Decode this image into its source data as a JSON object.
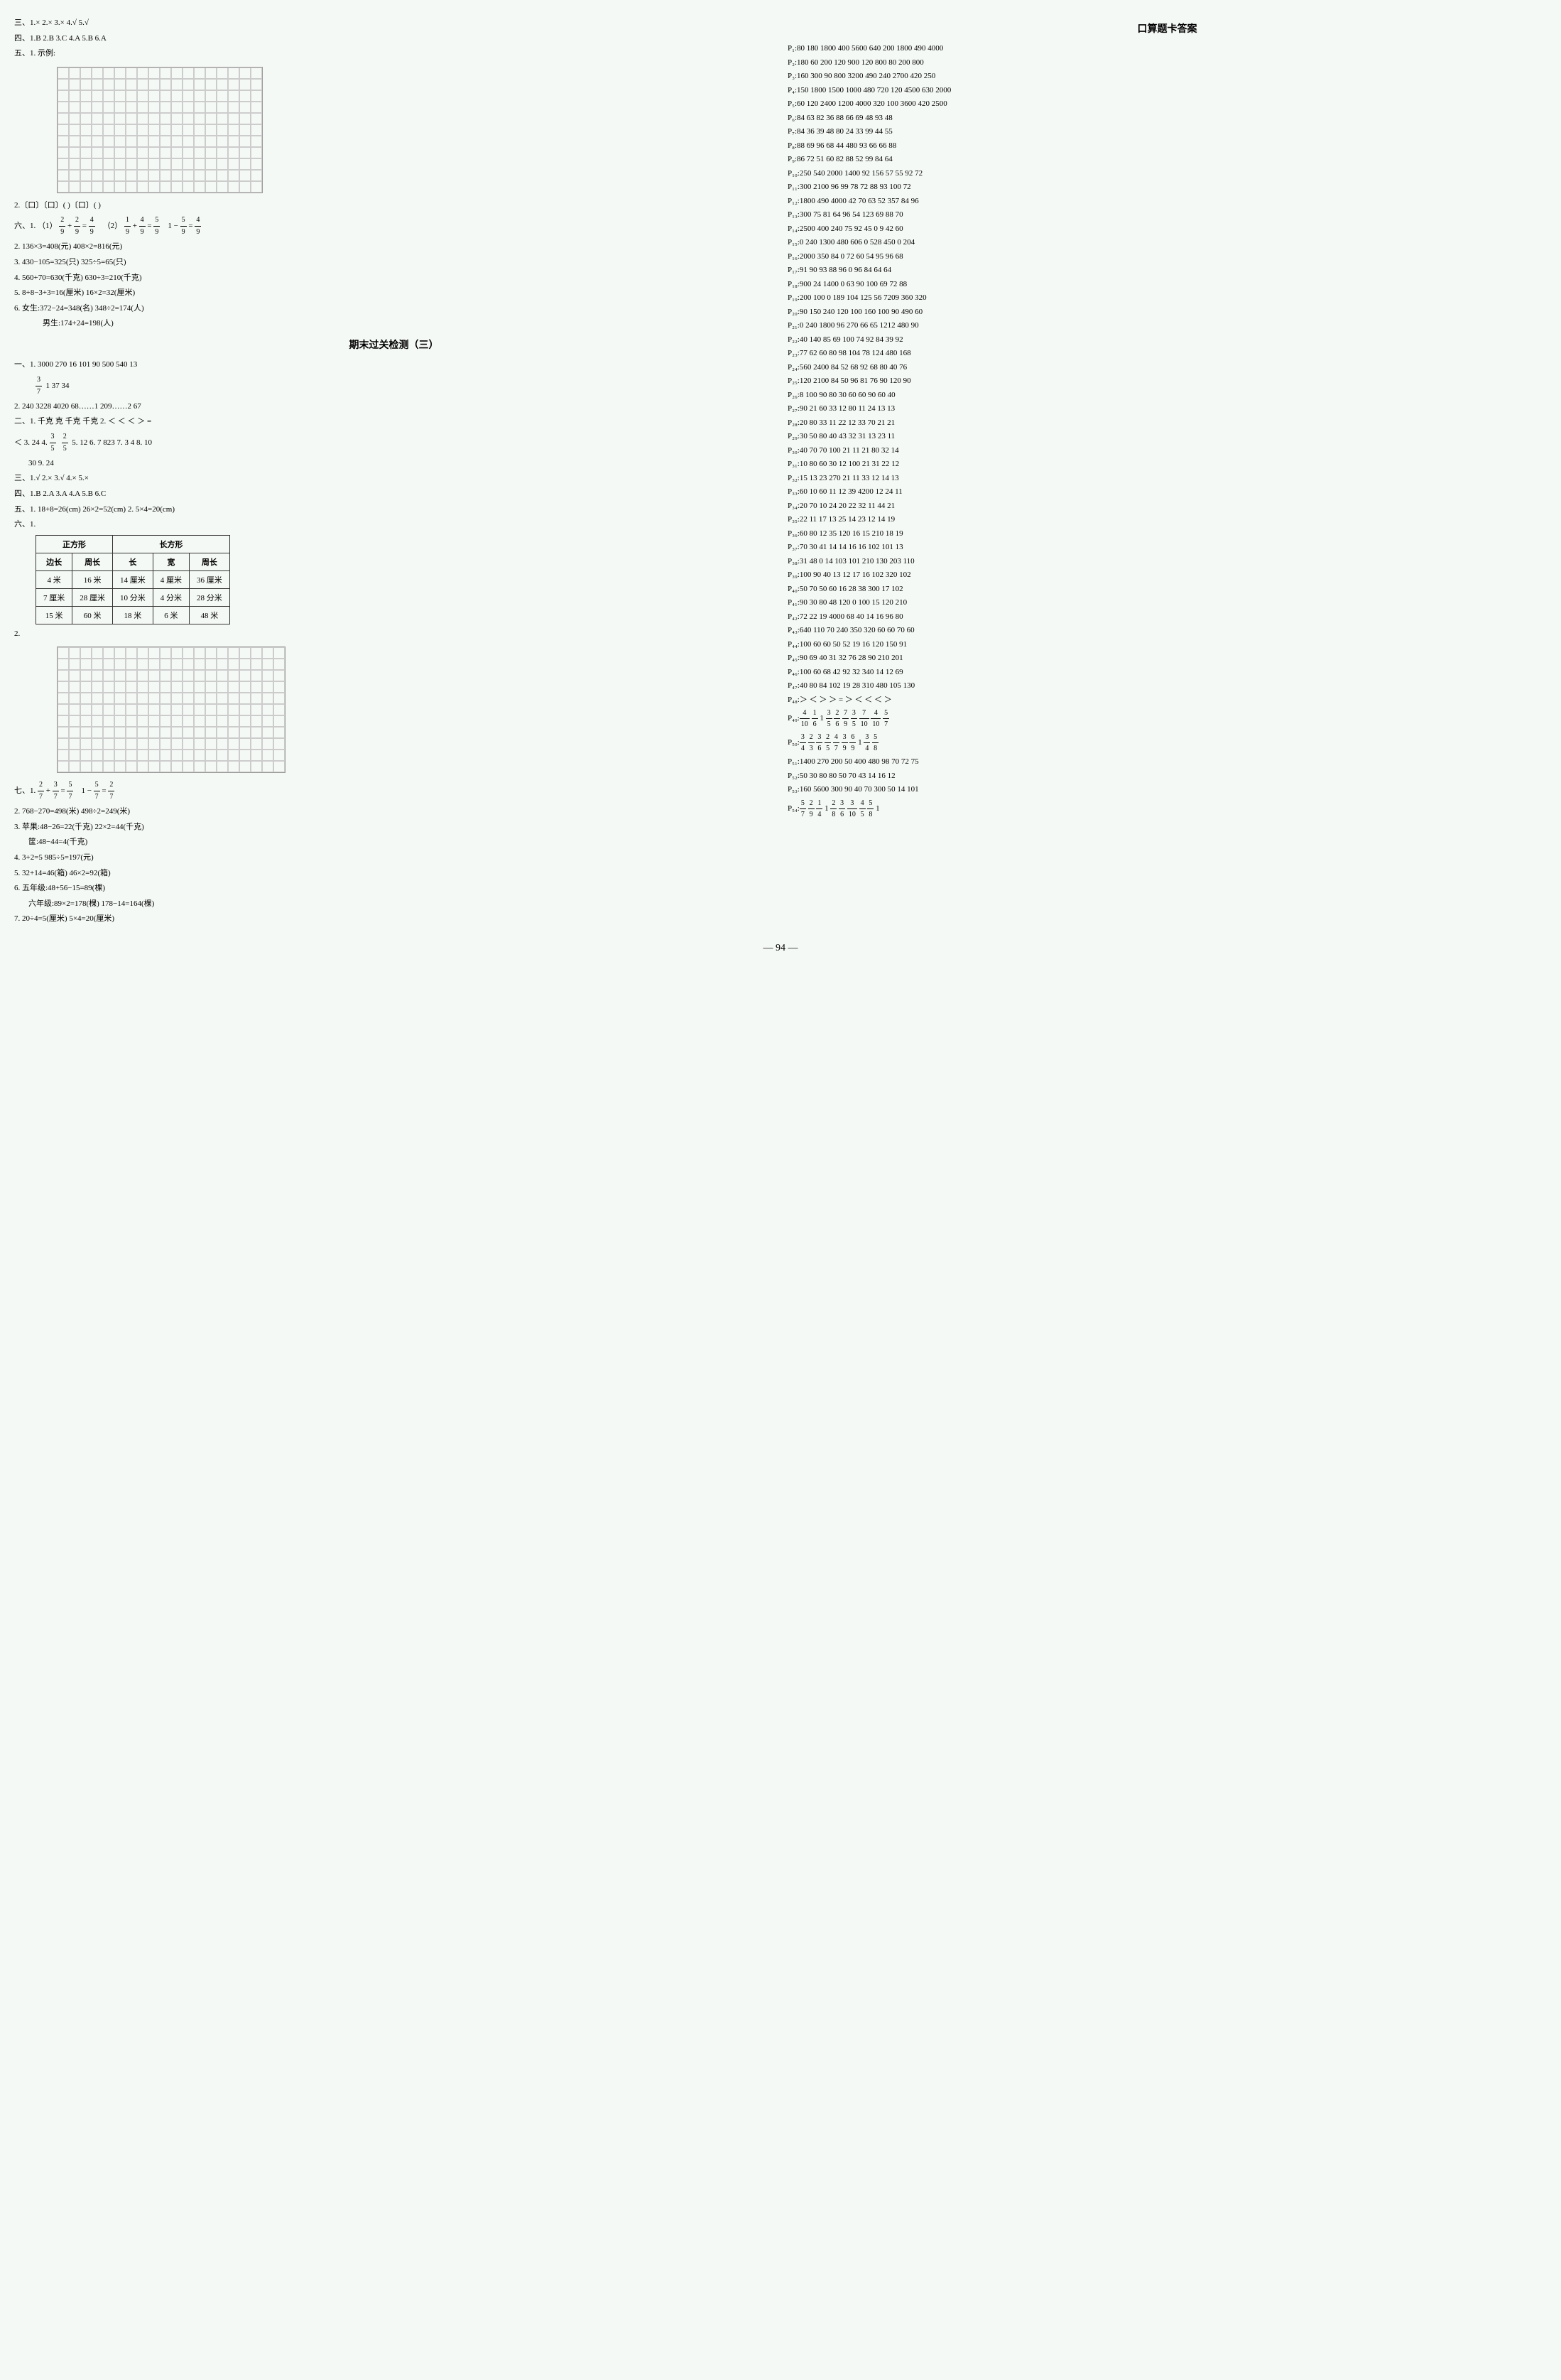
{
  "left": {
    "san": "三、1.× 2.× 3.× 4.√ 5.√",
    "si": "四、1.B 2.B 3.C 4.A 5.B 6.A",
    "wu1_label": "五、1. 示例:",
    "wu2": "2.〔口〕〔口〕( )〔口〕( )",
    "liu_header": "六、1.",
    "liu1_1": "（1）",
    "liu1_frac1": {
      "n": "2",
      "d": "9"
    },
    "liu1_plus": " + ",
    "liu1_frac2": {
      "n": "2",
      "d": "9"
    },
    "liu1_eq": " = ",
    "liu1_frac3": {
      "n": "4",
      "d": "9"
    },
    "liu1_2": "（2）",
    "liu1_fracA": {
      "n": "1",
      "d": "9"
    },
    "liu1_plusA": " + ",
    "liu1_fracB": {
      "n": "4",
      "d": "9"
    },
    "liu1_eqA": " = ",
    "liu1_fracC": {
      "n": "5",
      "d": "9"
    },
    "liu1_3": "1 − ",
    "liu1_fracD": {
      "n": "5",
      "d": "9"
    },
    "liu1_eqB": " = ",
    "liu1_fracE": {
      "n": "4",
      "d": "9"
    },
    "liu2": "2. 136×3=408(元) 408×2=816(元)",
    "liu3": "3. 430−105=325(只) 325÷5=65(只)",
    "liu4": "4. 560+70=630(千克) 630÷3=210(千克)",
    "liu5": "5. 8+8−3+3=16(厘米) 16×2=32(厘米)",
    "liu6a": "6. 女生:372−24=348(名) 348÷2=174(人)",
    "liu6b": "男生:174+24=198(人)",
    "test3_title": "期末过关检测（三）",
    "t3_yi1": "一、1. 3000 270 16 101 90 500 540 13",
    "t3_yi1_frac": {
      "n": "3",
      "d": "7"
    },
    "t3_yi1_rest": "1 37 34",
    "t3_yi2": "2. 240 3228 4020 68……1 209……2 67",
    "t3_er1": "二、1. 千克 克 千克 千克 2. ＜ ＜ ＜ ＞ =",
    "t3_er2": "＜ 3. 24 4.",
    "t3_er2_frac1": {
      "n": "3",
      "d": "5"
    },
    "t3_er2_frac2": {
      "n": "2",
      "d": "5"
    },
    "t3_er2_rest": "5. 12 6. 7 823 7. 3 4 8. 10",
    "t3_er3": "30 9. 24",
    "t3_san": "三、1.√ 2.× 3.√ 4.× 5.×",
    "t3_si": "四、1.B 2.A 3.A 4.A 5.B 6.C",
    "t3_wu": "五、1. 18+8=26(cm) 26×2=52(cm) 2. 5×4=20(cm)",
    "t3_liu_label": "六、1.",
    "table": {
      "headers": [
        "正方形",
        "",
        "长方形",
        "",
        ""
      ],
      "subheaders": [
        "边长",
        "周长",
        "长",
        "宽",
        "周长"
      ],
      "rows": [
        [
          "4 米",
          "16 米",
          "14 厘米",
          "4 厘米",
          "36 厘米"
        ],
        [
          "7 厘米",
          "28 厘米",
          "10 分米",
          "4 分米",
          "28 分米"
        ],
        [
          "15 米",
          "60 米",
          "18 米",
          "6 米",
          "48 米"
        ]
      ]
    },
    "t3_liu2_label": "2.",
    "t3_qi_label": "七、1.",
    "t3_qi1_frac1": {
      "n": "2",
      "d": "7"
    },
    "t3_qi1_plus": " + ",
    "t3_qi1_frac2": {
      "n": "3",
      "d": "7"
    },
    "t3_qi1_eq": " = ",
    "t3_qi1_frac3": {
      "n": "5",
      "d": "7"
    },
    "t3_qi1_sp": "1 − ",
    "t3_qi1_frac4": {
      "n": "5",
      "d": "7"
    },
    "t3_qi1_eq2": " = ",
    "t3_qi1_frac5": {
      "n": "2",
      "d": "7"
    },
    "t3_qi2": "2. 768−270=498(米) 498÷2=249(米)",
    "t3_qi3a": "3. 苹果:48−26=22(千克) 22×2=44(千克)",
    "t3_qi3b": "筐:48−44=4(千克)",
    "t3_qi4": "4. 3+2=5 985÷5=197(元)",
    "t3_qi5": "5. 32+14=46(箱) 46×2=92(箱)",
    "t3_qi6a": "6. 五年级:48+56−15=89(棵)",
    "t3_qi6b": "六年级:89×2=178(棵) 178−14=164(棵)",
    "t3_qi7": "7. 20÷4=5(厘米) 5×4=20(厘米)"
  },
  "right": {
    "title": "口算题卡答案",
    "rows": [
      {
        "label": "P₁:",
        "values": "80 180 1800 400 5600 640 200 1800 490 4000"
      },
      {
        "label": "P₂:",
        "values": "180 60 200 120 900 120 800 80 200 800"
      },
      {
        "label": "P₃:",
        "values": "160 300 90 800 3200 490 240 2700 420 250"
      },
      {
        "label": "P₄:",
        "values": "150 1800 1500 1000 480 720 120 4500 630 2000"
      },
      {
        "label": "P₅:",
        "values": "60 120 2400 1200 4000 320 100 3600 420 2500"
      },
      {
        "label": "P₆:",
        "values": "84 63 82 36 88 66 69 48 93 48"
      },
      {
        "label": "P₇:",
        "values": "84 36 39 48 80 24 33 99 44 55"
      },
      {
        "label": "P₈:",
        "values": "88 69 96 68 44 480 93 66 66 88"
      },
      {
        "label": "P₉:",
        "values": "86 72 51 60 82 88 52 99 84 64"
      },
      {
        "label": "P₁₀:",
        "values": "250 540 2000 1400 92 156 57 55 92 72"
      },
      {
        "label": "P₁₁:",
        "values": "300 2100 96 99 78 72 88 93 100 72"
      },
      {
        "label": "P₁₂:",
        "values": "1800 490 4000 42 70 63 52 357 84 96"
      },
      {
        "label": "P₁₃:",
        "values": "300 75 81 64 96 54 123 69 88 70"
      },
      {
        "label": "P₁₄:",
        "values": "2500 400 240 75 92 45 0 9 42 60"
      },
      {
        "label": "P₁₅:",
        "values": "0 240 1300 480 606 0 528 450 0 204"
      },
      {
        "label": "P₁₆:",
        "values": "2000 350 84 0 72 60 54 95 96 68"
      },
      {
        "label": "P₁₇:",
        "values": "91 90 93 88 96 0 96 84 64 64"
      },
      {
        "label": "P₁₈:",
        "values": "900 24 1400 0 63 90 100 69 72 88"
      },
      {
        "label": "P₁₉:",
        "values": "200 100 0 189 104 125 56 7209 360 320"
      },
      {
        "label": "P₂₀:",
        "values": "90 150 240 120 100 160 100 90 490 60"
      },
      {
        "label": "P₂₁:",
        "values": "0 240 1800 96 270 66 65 1212 480 90"
      },
      {
        "label": "P₂₂:",
        "values": "40 140 85 69 100 74 92 84 39 92"
      },
      {
        "label": "P₂₃:",
        "values": "77 62 60 80 98 104 78 124 480 168"
      },
      {
        "label": "P₂₄:",
        "values": "560 2400 84 52 68 92 68 80 40 76"
      },
      {
        "label": "P₂₅:",
        "values": "120 2100 84 50 96 81 76 90 120 90"
      },
      {
        "label": "P₂₆:",
        "values": "8 100 90 80 30 60 60 90 60 40"
      },
      {
        "label": "P₂₇:",
        "values": "90 21 60 33 12 80 11 24 13 13"
      },
      {
        "label": "P₂₈:",
        "values": "20 80 33 11 22 12 33 70 21 21"
      },
      {
        "label": "P₂₉:",
        "values": "30 50 80 40 43 32 31 13 23 11"
      },
      {
        "label": "P₃₀:",
        "values": "40 70 70 100 21 11 21 80 32 14"
      },
      {
        "label": "P₃₁:",
        "values": "10 80 60 30 12 100 21 31 22 12"
      },
      {
        "label": "P₃₂:",
        "values": "15 13 23 270 21 11 33 12 14 13"
      },
      {
        "label": "P₃₃:",
        "values": "60 10 60 11 12 39 4200 12 24 11"
      },
      {
        "label": "P₃₄:",
        "values": "20 70 10 24 20 22 32 11 44 21"
      },
      {
        "label": "P₃₅:",
        "values": "22 11 17 13 25 14 23 12 14 19"
      },
      {
        "label": "P₃₆:",
        "values": "60 80 12 35 120 16 15 210 18 19"
      },
      {
        "label": "P₃₇:",
        "values": "70 30 41 14 14 16 16 102 101 13"
      },
      {
        "label": "P₃₈:",
        "values": "31 48 0 14 103 101 210 130 203 110"
      },
      {
        "label": "P₃₉:",
        "values": "100 90 40 13 12 17 16 102 320 102"
      },
      {
        "label": "P₄₀:",
        "values": "50 70 50 60 16 28 38 300 17 102"
      },
      {
        "label": "P₄₁:",
        "values": "90 30 80 48 120 0 100 15 120 210"
      },
      {
        "label": "P₄₂:",
        "values": "72 22 19 4000 68 40 14 16 96 80"
      },
      {
        "label": "P₄₃:",
        "values": "640 110 70 240 350 320 60 60 70 60"
      },
      {
        "label": "P₄₄:",
        "values": "100 60 60 50 52 19 16 120 150 91"
      },
      {
        "label": "P₄₅:",
        "values": "90 69 40 31 32 76 28 90 210 201"
      },
      {
        "label": "P₄₆:",
        "values": "100 60 68 42 92 32 340 14 12 69"
      },
      {
        "label": "P₄₇:",
        "values": "40 80 84 102 19 28 310 480 105 130"
      },
      {
        "label": "P₄₈:",
        "values": "＞ ＜ ＞ ＞ = ＞ ＜ ＜ ＜ ＞"
      }
    ],
    "fraction_rows": [
      {
        "label": "P₄₉:",
        "fracs": [
          {
            "n": "4",
            "d": "10"
          },
          {
            "n": "1",
            "d": "6"
          },
          "1",
          {
            "n": "3",
            "d": "5"
          },
          {
            "n": "2",
            "d": "6"
          },
          {
            "n": "7",
            "d": "9"
          },
          {
            "n": "3",
            "d": "5"
          },
          {
            "n": "7",
            "d": "10"
          },
          {
            "n": "4",
            "d": "10"
          },
          {
            "n": "5",
            "d": "7"
          }
        ]
      },
      {
        "label": "P₅₀:",
        "fracs": [
          {
            "n": "3",
            "d": "4"
          },
          {
            "n": "2",
            "d": "3"
          },
          {
            "n": "3",
            "d": "6"
          },
          {
            "n": "2",
            "d": "5"
          },
          {
            "n": "4",
            "d": "7"
          },
          {
            "n": "3",
            "d": "9"
          },
          {
            "n": "6",
            "d": "9"
          },
          "1",
          {
            "n": "3",
            "d": "4"
          },
          {
            "n": "5",
            "d": "8"
          }
        ]
      }
    ],
    "more_rows": [
      {
        "label": "P₅₁:",
        "values": "1400 270 200 50 400 480 98 70 72 75"
      },
      {
        "label": "P₅₂:",
        "values": "50 30 80 80 50 70 43 14 16 12"
      },
      {
        "label": "P₅₃:",
        "values": "160 5600 300 90 40 70 300 50 14 101"
      }
    ],
    "fraction_row_54": {
      "label": "P₅₄:",
      "fracs": [
        {
          "n": "5",
          "d": "7"
        },
        {
          "n": "2",
          "d": "9"
        },
        {
          "n": "1",
          "d": "4"
        },
        "1",
        {
          "n": "2",
          "d": "8"
        },
        {
          "n": "3",
          "d": "6"
        },
        {
          "n": "3",
          "d": "10"
        },
        {
          "n": "4",
          "d": "5"
        },
        {
          "n": "5",
          "d": "8"
        },
        "1"
      ]
    }
  },
  "page_number": "94"
}
